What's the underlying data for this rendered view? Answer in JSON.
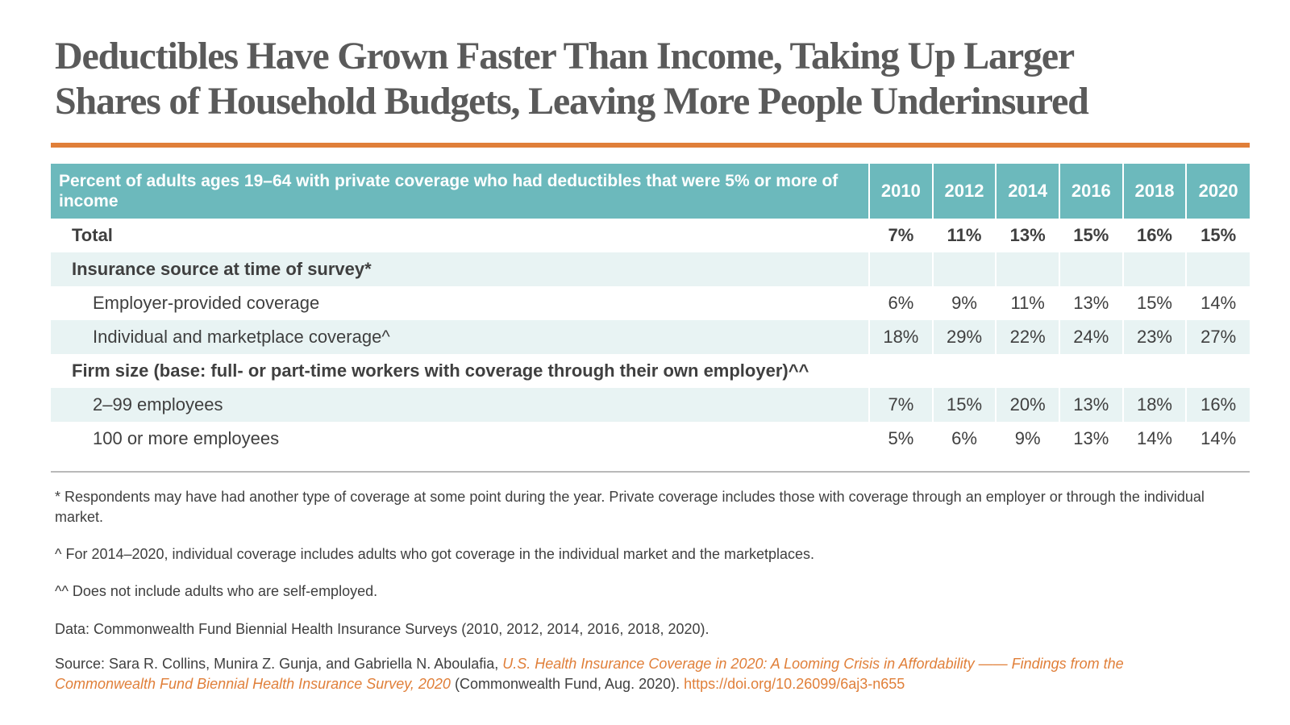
{
  "colors": {
    "accent": "#e07f39",
    "header_bg": "#6cb9bc",
    "shade": "#e8f3f3",
    "text": "#3f3f3f"
  },
  "title": {
    "line1": "Deductibles Have Grown Faster Than Income, Taking Up Larger",
    "line2": "Shares of Household Budgets, Leaving More People Underinsured"
  },
  "chart_data": {
    "type": "table",
    "header_label": "Percent of adults ages 19–64 with private coverage who had deductibles that were 5% or more of income",
    "years": [
      "2010",
      "2012",
      "2014",
      "2016",
      "2018",
      "2020"
    ],
    "rows": [
      {
        "label": "Total",
        "values": [
          "7%",
          "11%",
          "13%",
          "15%",
          "16%",
          "15%"
        ]
      },
      {
        "label": "Insurance source at time of survey*",
        "values": [
          "",
          "",
          "",
          "",
          "",
          ""
        ]
      },
      {
        "label": "Employer-provided coverage",
        "values": [
          "6%",
          "9%",
          "11%",
          "13%",
          "15%",
          "14%"
        ]
      },
      {
        "label": "Individual and marketplace coverage^",
        "values": [
          "18%",
          "29%",
          "22%",
          "24%",
          "23%",
          "27%"
        ]
      },
      {
        "label": "Firm size (base: full- or part-time workers with coverage through their own employer)^^",
        "values": [
          "",
          "",
          "",
          "",
          "",
          ""
        ]
      },
      {
        "label": "2–99 employees",
        "values": [
          "7%",
          "15%",
          "20%",
          "13%",
          "18%",
          "16%"
        ]
      },
      {
        "label": "100 or more employees",
        "values": [
          "5%",
          "6%",
          "9%",
          "13%",
          "14%",
          "14%"
        ]
      }
    ]
  },
  "notes": {
    "asterisk": "* Respondents may have had another type of coverage at some point during the year. Private coverage includes those with coverage through an employer or through the individual market.",
    "caret": "^ For 2014–2020, individual coverage includes adults who got coverage in the individual market and the marketplaces.",
    "double_caret": "^^ Does not include adults who are self-employed.",
    "data": "Data: Commonwealth Fund Biennial Health Insurance Surveys (2010, 2012, 2014, 2016, 2018, 2020).",
    "source_prefix": "Source: Sara R. Collins, Munira Z. Gunja, and Gabriella N. Aboulafia, ",
    "source_title": "U.S. Health Insurance Coverage in 2020: A Looming Crisis in Affordability —— Findings from the Commonwealth Fund Biennial Health Insurance Survey, 2020",
    "source_suffix": " (Commonwealth Fund, Aug. 2020). ",
    "doi": "https://doi.org/10.26099/6aj3-n655"
  }
}
